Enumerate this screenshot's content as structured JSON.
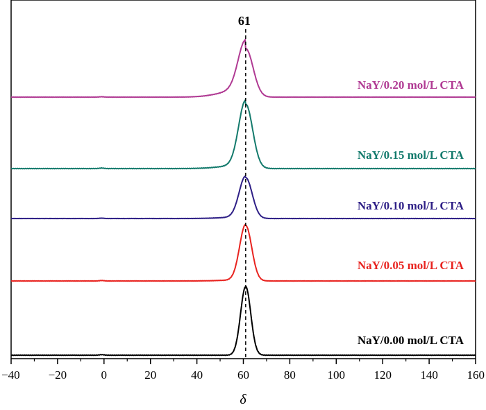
{
  "chart_data": {
    "type": "line",
    "xlabel": "δ",
    "xlim": [
      -40,
      160
    ],
    "x_ticks": [
      -40,
      -20,
      0,
      20,
      40,
      60,
      80,
      100,
      120,
      140,
      160
    ],
    "x_tick_labels": [
      "−40",
      "−20",
      "0",
      "20",
      "40",
      "60",
      "80",
      "100",
      "120",
      "140",
      "160"
    ],
    "grid": false,
    "legend": "none",
    "annotations": [
      {
        "text": "61",
        "x": 61,
        "style": "dashed vertical line"
      }
    ],
    "peak_position": 61,
    "series": [
      {
        "name": "NaY/0.00 mol/L CTA",
        "color": "#000000",
        "baseline": 0.0,
        "peak_height": 1.0,
        "peak_width": 2.2,
        "shoulder": 0.0
      },
      {
        "name": "NaY/0.05 mol/L CTA",
        "color": "#e8231f",
        "baseline": 1.0,
        "peak_height": 0.85,
        "peak_width": 2.6,
        "shoulder": 0.02
      },
      {
        "name": "NaY/0.10 mol/L CTA",
        "color": "#2e1f86",
        "baseline": 1.9,
        "peak_height": 0.6,
        "peak_width": 2.8,
        "shoulder": 0.04
      },
      {
        "name": "NaY/0.15 mol/L CTA",
        "color": "#137a6c",
        "baseline": 2.7,
        "peak_height": 0.95,
        "peak_width": 3.0,
        "shoulder": 0.06
      },
      {
        "name": "NaY/0.20 mol/L CTA",
        "color": "#b03a93",
        "baseline": 3.7,
        "peak_height": 0.72,
        "peak_width": 3.2,
        "shoulder": 0.18
      }
    ]
  }
}
